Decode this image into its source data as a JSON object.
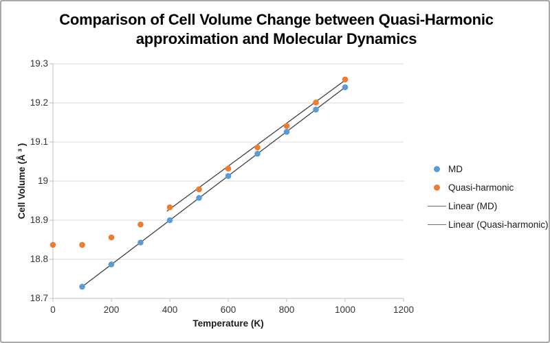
{
  "window": {
    "background": "#ffffff",
    "border_color": "#a8a8a8"
  },
  "title": {
    "line1": "Comparison of Cell Volume Change between Quasi-Harmonic",
    "line2": "approximation and Molecular Dynamics"
  },
  "chart_data": {
    "type": "scatter",
    "title": "Comparison of Cell Volume Change between Quasi-Harmonic approximation and Molecular Dynamics",
    "xlabel": "Temperature (K)",
    "ylabel": "Cell Volume (Å ³ )",
    "xlim": [
      0,
      1200
    ],
    "ylim": [
      18.7,
      19.3
    ],
    "x_ticks": [
      "0",
      "200",
      "400",
      "600",
      "800",
      "1000",
      "1200"
    ],
    "y_ticks": [
      "18.7",
      "18.8",
      "18.9",
      "19",
      "19.1",
      "19.2",
      "19.3"
    ],
    "grid": "horizontal-only",
    "legend_position": "right",
    "colors": {
      "gridline": "#d9d9d9",
      "axis": "#bfbfbf",
      "tick_text": "#333333",
      "md_blue": "#5B9BD5",
      "qh_orange": "#ED7D31",
      "trendline": "#404040"
    },
    "series": [
      {
        "name": "MD",
        "kind": "scatter",
        "color": "#5B9BD5",
        "x": [
          100,
          200,
          300,
          400,
          500,
          600,
          700,
          800,
          900,
          1000
        ],
        "y": [
          18.73,
          18.787,
          18.843,
          18.9,
          18.957,
          19.013,
          19.07,
          19.126,
          19.183,
          19.24
        ]
      },
      {
        "name": "Quasi-harmonic",
        "kind": "scatter",
        "color": "#ED7D31",
        "x": [
          0,
          100,
          200,
          300,
          400,
          500,
          600,
          700,
          800,
          900,
          1000
        ],
        "y": [
          18.837,
          18.837,
          18.856,
          18.889,
          18.933,
          18.979,
          19.032,
          19.086,
          19.141,
          19.201,
          19.26
        ]
      },
      {
        "name": "Linear (MD)",
        "kind": "line",
        "color": "#404040",
        "x": [
          100,
          1000
        ],
        "y": [
          18.73,
          19.24
        ]
      },
      {
        "name": "Linear (Quasi-harmonic)",
        "kind": "line",
        "color": "#404040",
        "x": [
          390,
          1000
        ],
        "y": [
          18.923,
          19.258
        ]
      }
    ]
  }
}
